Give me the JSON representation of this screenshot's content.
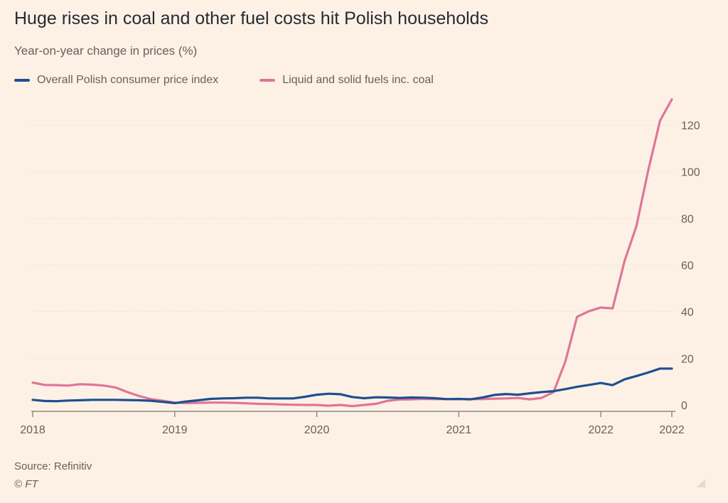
{
  "title": "Huge rises in coal and other fuel costs hit Polish households",
  "subtitle": "Year-on-year change in prices (%)",
  "source": "Source: Refinitiv",
  "credit": "© FT",
  "colors": {
    "background": "#fdf1e5",
    "cpi": "#1d4f91",
    "fuel": "#e07598",
    "grid": "#e6dbd0",
    "axis": "#66605c"
  },
  "chart_data": {
    "type": "line",
    "title": "Huge rises in coal and other fuel costs hit Polish households",
    "subtitle": "Year-on-year change in prices (%)",
    "ylim": [
      0,
      130
    ],
    "yticks": [
      0,
      20,
      40,
      60,
      80,
      100,
      120
    ],
    "xlim": [
      2018.0,
      2022.5
    ],
    "xticks": [
      {
        "value": 2018.0,
        "label": "2018"
      },
      {
        "value": 2019.0,
        "label": "2019"
      },
      {
        "value": 2020.0,
        "label": "2020"
      },
      {
        "value": 2021.0,
        "label": "2021"
      },
      {
        "value": 2022.0,
        "label": "2022"
      },
      {
        "value": 2022.5,
        "label": "2022"
      }
    ],
    "y_axis_side": "right",
    "grid": true,
    "legend_position": "top-left",
    "series": [
      {
        "name": "Overall Polish consumer price index",
        "color": "#1d4f91",
        "x": [
          2018.0,
          2018.083,
          2018.167,
          2018.25,
          2018.333,
          2018.417,
          2018.5,
          2018.583,
          2018.667,
          2018.75,
          2018.833,
          2018.917,
          2019.0,
          2019.083,
          2019.167,
          2019.25,
          2019.333,
          2019.417,
          2019.5,
          2019.583,
          2019.667,
          2019.75,
          2019.833,
          2019.917,
          2020.0,
          2020.083,
          2020.167,
          2020.25,
          2020.333,
          2020.417,
          2020.5,
          2020.583,
          2020.667,
          2020.75,
          2020.833,
          2020.917,
          2021.0,
          2021.083,
          2021.167,
          2021.25,
          2021.333,
          2021.417,
          2021.5,
          2021.583,
          2021.667,
          2021.75,
          2021.833,
          2021.917,
          2022.0,
          2022.083,
          2022.167,
          2022.25,
          2022.333,
          2022.417,
          2022.5
        ],
        "values": [
          2.2,
          1.7,
          1.6,
          1.9,
          2.0,
          2.2,
          2.2,
          2.2,
          2.1,
          2.0,
          1.8,
          1.3,
          0.8,
          1.5,
          2.0,
          2.6,
          2.8,
          2.9,
          3.1,
          3.1,
          2.8,
          2.8,
          2.8,
          3.5,
          4.4,
          4.8,
          4.6,
          3.4,
          2.9,
          3.3,
          3.2,
          3.0,
          3.2,
          3.1,
          2.9,
          2.5,
          2.6,
          2.4,
          3.2,
          4.3,
          4.7,
          4.4,
          5.0,
          5.5,
          5.9,
          6.8,
          7.8,
          8.6,
          9.4,
          8.5,
          11.0,
          12.4,
          13.9,
          15.6,
          15.6
        ]
      },
      {
        "name": "Liquid and solid fuels inc. coal",
        "color": "#e07598",
        "x": [
          2018.0,
          2018.083,
          2018.167,
          2018.25,
          2018.333,
          2018.417,
          2018.5,
          2018.583,
          2018.667,
          2018.75,
          2018.833,
          2018.917,
          2019.0,
          2019.083,
          2019.167,
          2019.25,
          2019.333,
          2019.417,
          2019.5,
          2019.583,
          2019.667,
          2019.75,
          2019.833,
          2019.917,
          2020.0,
          2020.083,
          2020.167,
          2020.25,
          2020.333,
          2020.417,
          2020.5,
          2020.583,
          2020.667,
          2020.75,
          2020.833,
          2020.917,
          2021.0,
          2021.083,
          2021.167,
          2021.25,
          2021.333,
          2021.417,
          2021.5,
          2021.583,
          2021.667,
          2021.75,
          2021.833,
          2021.917,
          2022.0,
          2022.083,
          2022.167,
          2022.25,
          2022.333,
          2022.417,
          2022.5
        ],
        "values": [
          9.6,
          8.6,
          8.5,
          8.3,
          8.9,
          8.7,
          8.3,
          7.5,
          5.5,
          3.8,
          2.5,
          1.8,
          1.0,
          0.8,
          0.9,
          1.0,
          1.0,
          0.9,
          0.7,
          0.5,
          0.4,
          0.2,
          0.1,
          0.0,
          0.0,
          -0.3,
          0.0,
          -0.5,
          0.0,
          0.5,
          1.8,
          2.3,
          2.4,
          2.6,
          2.5,
          2.5,
          2.5,
          2.5,
          2.5,
          2.7,
          2.8,
          3.0,
          2.4,
          3.0,
          5.5,
          18.6,
          37.8,
          40.2,
          41.8,
          41.4,
          61.7,
          76.6,
          100.3,
          121.9,
          131.0
        ]
      }
    ]
  }
}
